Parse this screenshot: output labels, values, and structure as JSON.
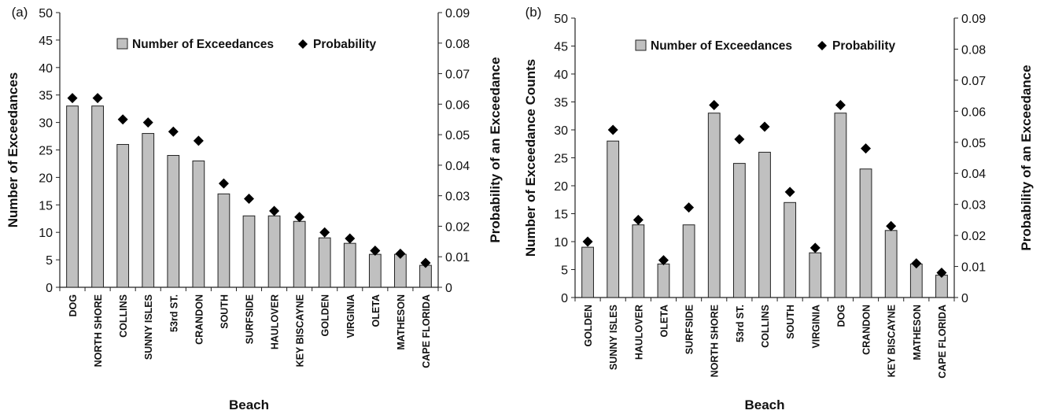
{
  "chart_data": [
    {
      "type": "bar",
      "panel_label": "(a)",
      "categories": [
        "DOG",
        "NORTH SHORE",
        "COLLINS",
        "SUNNY ISLES",
        "53rd ST.",
        "CRANDON",
        "SOUTH",
        "SURFSIDE",
        "HAULOVER",
        "KEY BISCAYNE",
        "GOLDEN",
        "VIRGINIA",
        "OLETA",
        "MATHESON",
        "CAPE FLORIDA"
      ],
      "series": [
        {
          "name": "Number of Exceedances",
          "kind": "bar",
          "axis": "left",
          "values": [
            33,
            33,
            26,
            28,
            24,
            23,
            17,
            13,
            13,
            12,
            9,
            8,
            6,
            6,
            4
          ]
        },
        {
          "name": "Probability",
          "kind": "marker",
          "axis": "right",
          "values": [
            0.062,
            0.062,
            0.055,
            0.054,
            0.051,
            0.048,
            0.034,
            0.029,
            0.025,
            0.023,
            0.018,
            0.016,
            0.012,
            0.011,
            0.008
          ]
        }
      ],
      "xlabel": "Beach",
      "ylabel": "Number of Exceedances",
      "y2label": "Probability of an Exceedance",
      "ylim": [
        0,
        50
      ],
      "y2lim": [
        0,
        0.09
      ],
      "yticks": [
        "0",
        "5",
        "10",
        "15",
        "20",
        "25",
        "30",
        "35",
        "40",
        "45",
        "50"
      ],
      "y2ticks": [
        "0",
        "0.01",
        "0.02",
        "0.03",
        "0.04",
        "0.05",
        "0.06",
        "0.07",
        "0.08",
        "0.09"
      ],
      "legend": "top-center",
      "grid": false
    },
    {
      "type": "bar",
      "panel_label": "(b)",
      "categories": [
        "GOLDEN",
        "SUNNY ISLES",
        "HAULOVER",
        "OLETA",
        "SURFSIDE",
        "NORTH SHORE",
        "53rd ST.",
        "COLLINS",
        "SOUTH",
        "VIRGINIA",
        "DOG",
        "CRANDON",
        "KEY BISCAYNE",
        "MATHESON",
        "CAPE FLORIDA"
      ],
      "series": [
        {
          "name": "Number of Exceedances",
          "kind": "bar",
          "axis": "left",
          "values": [
            9,
            28,
            13,
            6,
            13,
            33,
            24,
            26,
            17,
            8,
            33,
            23,
            12,
            6,
            4
          ]
        },
        {
          "name": "Probability",
          "kind": "marker",
          "axis": "right",
          "values": [
            0.018,
            0.054,
            0.025,
            0.012,
            0.029,
            0.062,
            0.051,
            0.055,
            0.034,
            0.016,
            0.062,
            0.048,
            0.023,
            0.011,
            0.008
          ]
        }
      ],
      "xlabel": "Beach",
      "ylabel": "Number of Exceedance Counts",
      "y2label": "Probability of an Exceedance",
      "ylim": [
        0,
        50
      ],
      "y2lim": [
        0,
        0.09
      ],
      "yticks": [
        "0",
        "5",
        "10",
        "15",
        "20",
        "25",
        "30",
        "35",
        "40",
        "45",
        "50"
      ],
      "y2ticks": [
        "0",
        "0.01",
        "0.02",
        "0.03",
        "0.04",
        "0.05",
        "0.06",
        "0.07",
        "0.08",
        "0.09"
      ],
      "legend": "top-center",
      "grid": false
    }
  ],
  "colors": {
    "bar_fill": "#c0c0c0",
    "bar_stroke": "#222222",
    "marker": "#000000",
    "axis": "#222222"
  }
}
